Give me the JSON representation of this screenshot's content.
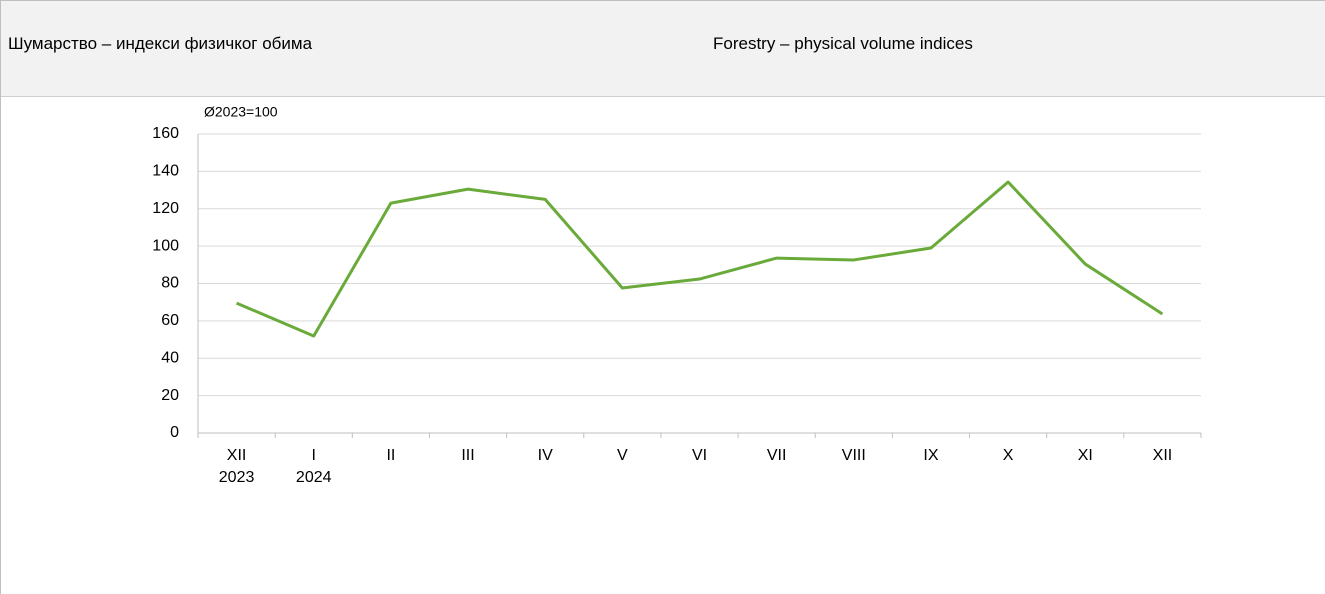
{
  "header": {
    "title_sr": "Шумарство – индекси физичког обима",
    "title_en": "Forestry – physical volume indices"
  },
  "chart_data": {
    "type": "line",
    "unit_label": "Ø2023=100",
    "categories": [
      "XII\n2023",
      "I\n2024",
      "II",
      "III",
      "IV",
      "V",
      "VI",
      "VII",
      "VIII",
      "IX",
      "X",
      "XI",
      "XII"
    ],
    "series": [
      {
        "name": "Forestry",
        "color": "#6aaa3a",
        "values": [
          69.5,
          51.9,
          123,
          130.5,
          125,
          77.6,
          82.4,
          93.6,
          92.6,
          99,
          134.3,
          90.4,
          63.7
        ]
      }
    ],
    "ylim": [
      0,
      160
    ],
    "yticks": [
      0,
      20,
      40,
      60,
      80,
      100,
      120,
      140,
      160
    ],
    "grid": true,
    "legend": false
  }
}
